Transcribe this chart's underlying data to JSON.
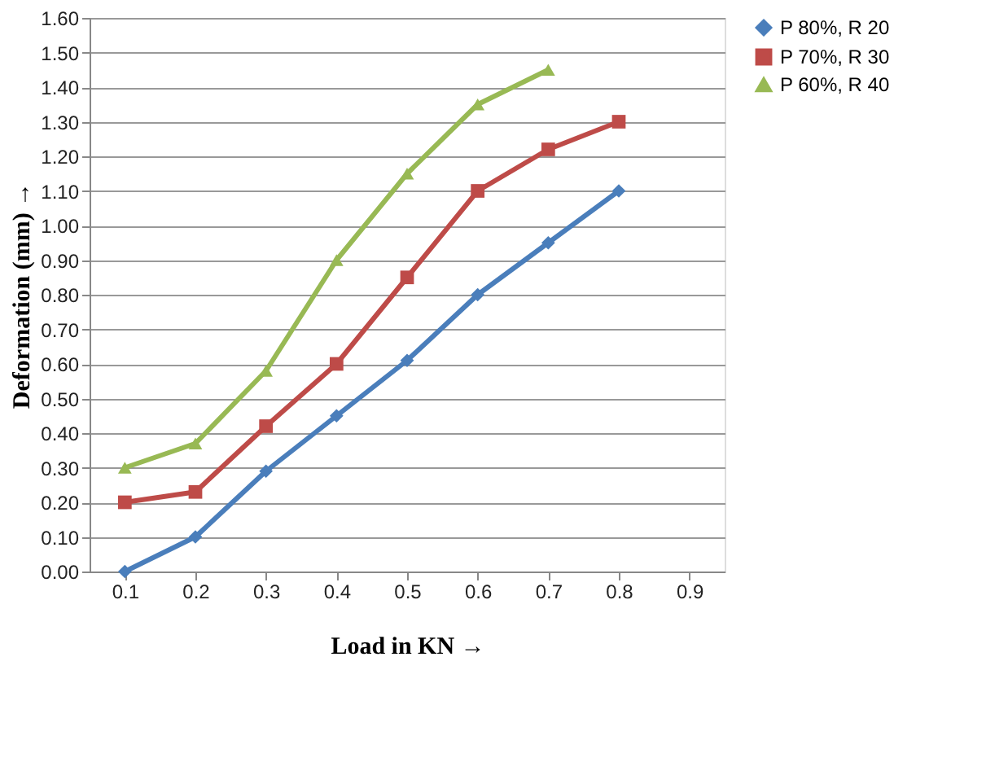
{
  "chart_data": {
    "type": "line",
    "xlabel": "Load in KN →",
    "ylabel": "Deformation (mm) →",
    "categories": [
      "0.1",
      "0.2",
      "0.3",
      "0.4",
      "0.5",
      "0.6",
      "0.7",
      "0.8",
      "0.9"
    ],
    "series": [
      {
        "name": "P 80%, R 20",
        "color": "#4a7ebb",
        "marker": "diamond",
        "values": [
          0.0,
          0.1,
          0.29,
          0.45,
          0.61,
          0.8,
          0.95,
          1.1,
          null
        ]
      },
      {
        "name": "P 70%, R 30",
        "color": "#be4b48",
        "marker": "square",
        "values": [
          0.2,
          0.23,
          0.42,
          0.6,
          0.85,
          1.1,
          1.22,
          1.3,
          null
        ]
      },
      {
        "name": "P 60%, R 40",
        "color": "#98b954",
        "marker": "triangle",
        "values": [
          0.3,
          0.37,
          0.58,
          0.9,
          1.15,
          1.35,
          1.45,
          null,
          null
        ]
      }
    ],
    "ylim": [
      0,
      1.6
    ],
    "yticks": [
      {
        "value": 0,
        "label": "0.00"
      },
      {
        "value": 0.1,
        "label": "0.10"
      },
      {
        "value": 0.2,
        "label": "0.20"
      },
      {
        "value": 0.3,
        "label": "0.30"
      },
      {
        "value": 0.4,
        "label": "0.40"
      },
      {
        "value": 0.5,
        "label": "0.50"
      },
      {
        "value": 0.6,
        "label": "0.60"
      },
      {
        "value": 0.7,
        "label": "0.70"
      },
      {
        "value": 0.8,
        "label": "0.80"
      },
      {
        "value": 0.9,
        "label": "0.90"
      },
      {
        "value": 1.0,
        "label": "1.00"
      },
      {
        "value": 1.1,
        "label": "1.10"
      },
      {
        "value": 1.2,
        "label": "1.20"
      },
      {
        "value": 1.3,
        "label": "1.30"
      },
      {
        "value": 1.4,
        "label": "1.40"
      },
      {
        "value": 1.5,
        "label": "1.50"
      },
      {
        "value": 1.6,
        "label": "1.60"
      }
    ],
    "grid": "y",
    "legend": "right",
    "line_style": "solid"
  }
}
